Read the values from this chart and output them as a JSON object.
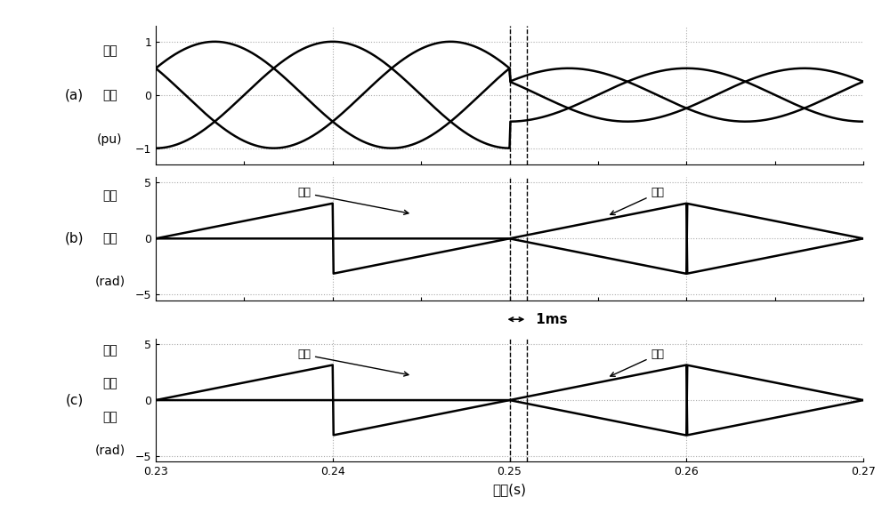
{
  "xlim": [
    0.23,
    0.27
  ],
  "t_fault": 0.25,
  "t_fault2": 0.251,
  "freq": 50,
  "amplitude_before": 1.0,
  "amplitude_after": 0.5,
  "panel_a_ylim": [
    -1.3,
    1.3
  ],
  "panel_bc_ylim": [
    -5.5,
    5.5
  ],
  "panel_bc_yticks": [
    -5,
    0,
    5
  ],
  "panel_a_yticks": [
    -1,
    0,
    1
  ],
  "xlabel": "时间(s)",
  "label_a": "(a)",
  "label_b": "(b)",
  "label_c": "(c)",
  "ylabel_a_lines": [
    "三相",
    "电压",
    "(pu)"
  ],
  "ylabel_b_lines": [
    "识别",
    "相位",
    "(rad)"
  ],
  "ylabel_c_lines": [
    "动态",
    "锁相",
    "相位",
    "(rad)"
  ],
  "xticks": [
    0.23,
    0.24,
    0.25,
    0.26,
    0.27
  ],
  "annotation_zhengxu": "正序",
  "annotation_fuxu": "负序",
  "ms_label": "1ms",
  "background_color": "#ffffff",
  "line_color": "#000000",
  "dotted_color": "#aaaaaa",
  "lw_signal": 1.8,
  "lw_dashed": 1.0,
  "lw_dotted": 0.8
}
